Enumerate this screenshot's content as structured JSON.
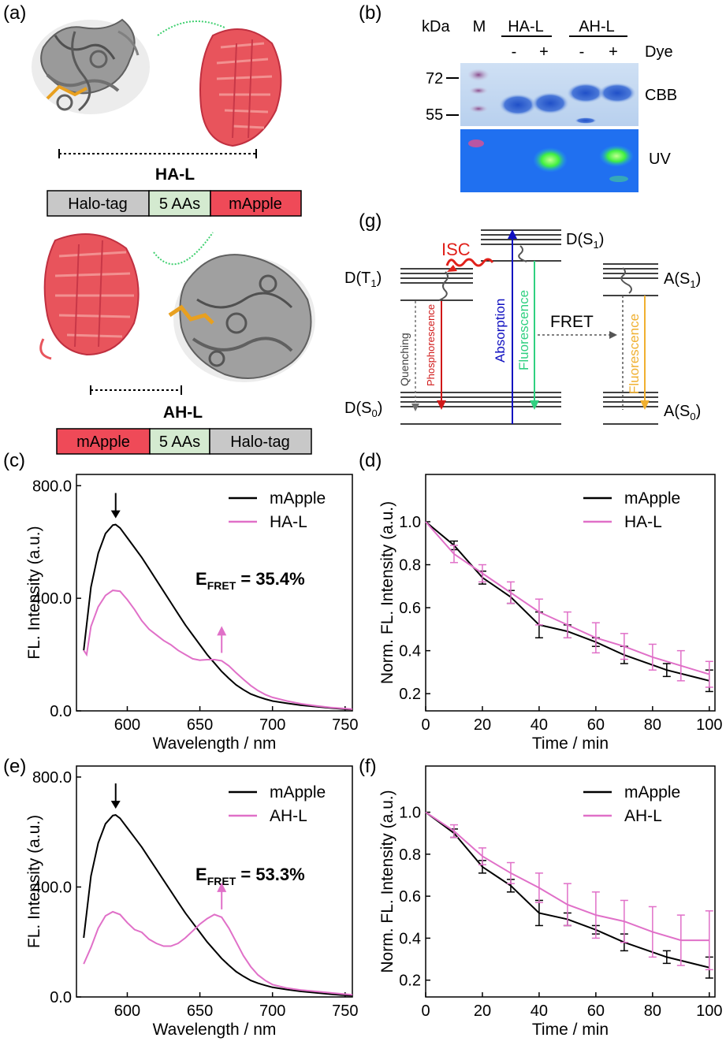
{
  "panel_labels": {
    "a": "(a)",
    "b": "(b)",
    "c": "(c)",
    "d": "(d)",
    "e": "(e)",
    "f": "(f)",
    "g": "(g)"
  },
  "panel_a": {
    "construct1_name": "HA-L",
    "construct1_segments": [
      "Halo-tag",
      "5 AAs",
      "mApple"
    ],
    "construct2_name": "AH-L",
    "construct2_segments": [
      "mApple",
      "5 AAs",
      "Halo-tag"
    ]
  },
  "panel_b": {
    "kda_label": "kDa",
    "marker_label": "M",
    "group1": "HA-L",
    "group2": "AH-L",
    "dye_signs": [
      "-",
      "+",
      "-",
      "+"
    ],
    "dye_label": "Dye",
    "mw_72": "72",
    "mw_55": "55",
    "cbb_label": "CBB",
    "uv_label": "UV"
  },
  "panel_g": {
    "d_s1": "D(S1)",
    "d_t1": "D(T1)",
    "d_s0": "D(S0)",
    "a_s1": "A(S1)",
    "a_s0": "A(S0)",
    "isc": "ISC",
    "fret": "FRET",
    "quenching": "Quenching",
    "phosphorescence": "Phosphorescence",
    "absorption": "Absorption",
    "fluorescence_d": "Fluorescence",
    "fluorescence_a": "Fluorescence",
    "colors": {
      "isc": "#e0201a",
      "absorption": "#1010c0",
      "fluor_d": "#30d080",
      "fluor_a": "#f0b030",
      "phos": "#d01818",
      "quench": "#707070"
    }
  },
  "chart_data": [
    {
      "id": "c",
      "type": "line",
      "xlabel": "Wavelength / nm",
      "ylabel": "FL. Intensity (a.u.)",
      "xlim": [
        565,
        755
      ],
      "ylim": [
        0,
        840
      ],
      "xticks": [
        600,
        650,
        700,
        750
      ],
      "yticks": [
        0,
        400,
        800
      ],
      "legend": [
        "mApple",
        "HA-L"
      ],
      "annotation": "E_FRET = 35.4%",
      "annotation_main": "E",
      "annotation_sub": "FRET",
      "annotation_val": " = 35.4%",
      "series": [
        {
          "name": "mApple",
          "color": "#000000",
          "x": [
            570,
            575,
            580,
            585,
            590,
            592,
            595,
            600,
            605,
            610,
            615,
            620,
            625,
            630,
            635,
            640,
            645,
            650,
            655,
            660,
            665,
            670,
            675,
            680,
            685,
            690,
            695,
            700,
            710,
            720,
            730,
            740,
            750,
            755
          ],
          "y": [
            215,
            440,
            560,
            630,
            660,
            662,
            650,
            615,
            580,
            545,
            505,
            465,
            425,
            385,
            345,
            305,
            270,
            235,
            200,
            170,
            140,
            115,
            92,
            75,
            60,
            50,
            42,
            35,
            27,
            20,
            15,
            10,
            6,
            5
          ]
        },
        {
          "name": "HA-L",
          "color": "#e070c8",
          "x": [
            570,
            572,
            575,
            580,
            585,
            590,
            595,
            600,
            605,
            610,
            615,
            620,
            625,
            630,
            635,
            640,
            645,
            650,
            655,
            660,
            665,
            670,
            675,
            680,
            685,
            690,
            695,
            700,
            710,
            720,
            730,
            740,
            750,
            755
          ],
          "y": [
            215,
            200,
            300,
            370,
            410,
            428,
            425,
            395,
            360,
            320,
            290,
            270,
            250,
            235,
            215,
            200,
            185,
            180,
            182,
            182,
            178,
            160,
            135,
            112,
            90,
            72,
            58,
            48,
            35,
            25,
            18,
            12,
            8,
            6
          ]
        }
      ]
    },
    {
      "id": "d",
      "type": "line",
      "xlabel": "Time / min",
      "ylabel": "Norm. FL. Intensity (a.u.)",
      "xlim": [
        0,
        102
      ],
      "ylim": [
        0.12,
        1.22
      ],
      "xticks": [
        0,
        20,
        40,
        60,
        80,
        100
      ],
      "yticks": [
        0.2,
        0.4,
        0.6,
        0.8,
        1.0
      ],
      "legend": [
        "mApple",
        "HA-L"
      ],
      "series": [
        {
          "name": "mApple",
          "color": "#000000",
          "x": [
            0,
            10,
            20,
            30,
            40,
            50,
            60,
            70,
            85,
            100
          ],
          "y": [
            1.0,
            0.89,
            0.74,
            0.65,
            0.52,
            0.49,
            0.44,
            0.38,
            0.31,
            0.26
          ],
          "err": [
            0,
            0.02,
            0.03,
            0.03,
            0.06,
            0.03,
            0.02,
            0.04,
            0.03,
            0.05
          ]
        },
        {
          "name": "HA-L",
          "color": "#e070c8",
          "x": [
            0,
            10,
            20,
            30,
            40,
            50,
            60,
            70,
            80,
            90,
            100
          ],
          "y": [
            1.0,
            0.85,
            0.76,
            0.67,
            0.58,
            0.52,
            0.46,
            0.42,
            0.37,
            0.33,
            0.29
          ],
          "err": [
            0,
            0.04,
            0.04,
            0.05,
            0.06,
            0.06,
            0.07,
            0.06,
            0.06,
            0.07,
            0.06
          ]
        }
      ]
    },
    {
      "id": "e",
      "type": "line",
      "xlabel": "Wavelength / nm",
      "ylabel": "FL. Intensity (a.u.)",
      "xlim": [
        565,
        755
      ],
      "ylim": [
        0,
        840
      ],
      "xticks": [
        600,
        650,
        700,
        750
      ],
      "yticks": [
        0,
        400,
        800
      ],
      "legend": [
        "mApple",
        "AH-L"
      ],
      "annotation": "E_FRET = 53.3%",
      "annotation_main": "E",
      "annotation_sub": "FRET",
      "annotation_val": " = 53.3%",
      "series": [
        {
          "name": "mApple",
          "color": "#000000",
          "x": [
            570,
            575,
            580,
            585,
            590,
            592,
            595,
            600,
            605,
            610,
            615,
            620,
            625,
            630,
            635,
            640,
            645,
            650,
            655,
            660,
            665,
            670,
            675,
            680,
            685,
            690,
            695,
            700,
            710,
            720,
            730,
            740,
            750,
            755
          ],
          "y": [
            215,
            440,
            560,
            630,
            660,
            662,
            650,
            615,
            580,
            545,
            505,
            465,
            425,
            385,
            345,
            305,
            270,
            235,
            200,
            170,
            140,
            115,
            92,
            75,
            60,
            50,
            42,
            35,
            27,
            20,
            15,
            10,
            6,
            5
          ]
        },
        {
          "name": "AH-L",
          "color": "#e070c8",
          "x": [
            570,
            575,
            580,
            585,
            590,
            595,
            600,
            605,
            610,
            615,
            620,
            625,
            630,
            635,
            640,
            645,
            650,
            655,
            660,
            665,
            670,
            675,
            680,
            685,
            690,
            695,
            700,
            710,
            720,
            730,
            740,
            750,
            755
          ],
          "y": [
            120,
            180,
            250,
            295,
            310,
            300,
            270,
            245,
            235,
            210,
            195,
            185,
            185,
            195,
            215,
            240,
            265,
            285,
            300,
            290,
            250,
            200,
            150,
            110,
            80,
            60,
            45,
            32,
            25,
            20,
            15,
            10,
            8
          ]
        }
      ]
    },
    {
      "id": "f",
      "type": "line",
      "xlabel": "Time / min",
      "ylabel": "Norm. FL. Intensity (a.u.)",
      "xlim": [
        0,
        102
      ],
      "ylim": [
        0.12,
        1.22
      ],
      "xticks": [
        0,
        20,
        40,
        60,
        80,
        100
      ],
      "yticks": [
        0.2,
        0.4,
        0.6,
        0.8,
        1.0
      ],
      "legend": [
        "mApple",
        "AH-L"
      ],
      "series": [
        {
          "name": "mApple",
          "color": "#000000",
          "x": [
            0,
            10,
            20,
            30,
            40,
            50,
            60,
            70,
            85,
            100
          ],
          "y": [
            1.0,
            0.9,
            0.74,
            0.65,
            0.52,
            0.49,
            0.44,
            0.38,
            0.31,
            0.26
          ],
          "err": [
            0,
            0.02,
            0.03,
            0.03,
            0.06,
            0.03,
            0.02,
            0.04,
            0.03,
            0.05
          ]
        },
        {
          "name": "AH-L",
          "color": "#e070c8",
          "x": [
            0,
            10,
            20,
            30,
            40,
            50,
            60,
            70,
            80,
            90,
            100
          ],
          "y": [
            1.0,
            0.91,
            0.79,
            0.71,
            0.64,
            0.56,
            0.51,
            0.48,
            0.43,
            0.39,
            0.39
          ],
          "err": [
            0,
            0.03,
            0.04,
            0.05,
            0.07,
            0.1,
            0.11,
            0.1,
            0.12,
            0.12,
            0.14
          ]
        }
      ]
    }
  ]
}
